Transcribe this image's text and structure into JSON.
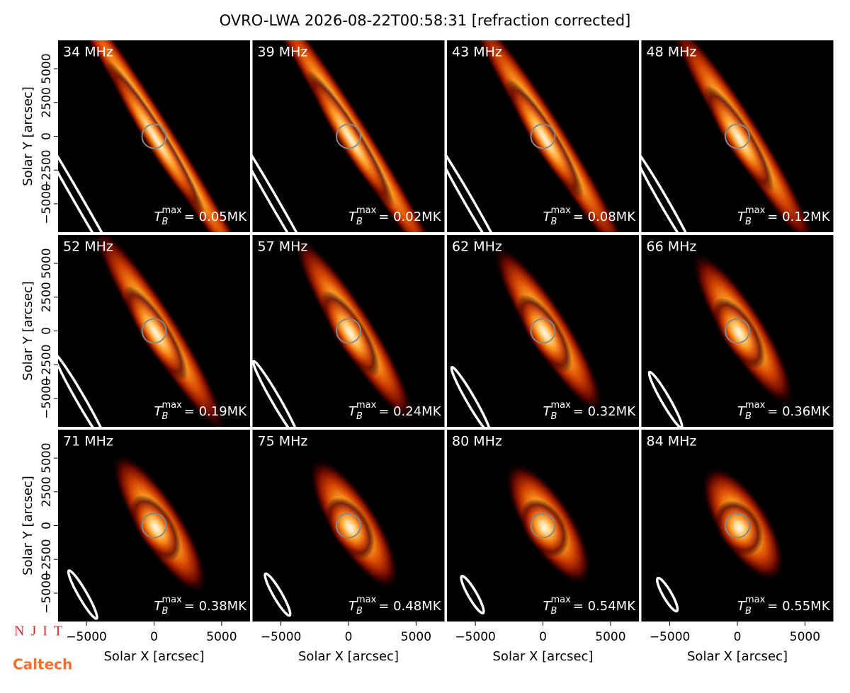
{
  "chart_data": {
    "type": "image-grid",
    "title": "OVRO-LWA 2026-08-22T00:58:31 [refraction corrected]",
    "xlabel": "Solar X [arcsec]",
    "ylabel": "Solar Y [arcsec]",
    "xlim": [
      -7100,
      7100
    ],
    "ylim": [
      -7100,
      7100
    ],
    "xticks": [
      {
        "value": -5000,
        "label": "−5000"
      },
      0,
      5000
    ],
    "yticks": [
      {
        "value": -5000,
        "label": "−5000"
      },
      {
        "value": -2500,
        "label": "−2500"
      },
      0,
      2500,
      5000
    ],
    "tb_symbol": {
      "main": "T",
      "sub": "B",
      "sup": "max"
    },
    "panels": [
      {
        "freq": "34 MHz",
        "tb_max": "= 0.05MK"
      },
      {
        "freq": "39 MHz",
        "tb_max": "= 0.02MK"
      },
      {
        "freq": "43 MHz",
        "tb_max": "= 0.08MK"
      },
      {
        "freq": "48 MHz",
        "tb_max": "= 0.12MK"
      },
      {
        "freq": "52 MHz",
        "tb_max": "= 0.19MK"
      },
      {
        "freq": "57 MHz",
        "tb_max": "= 0.24MK"
      },
      {
        "freq": "62 MHz",
        "tb_max": "= 0.32MK"
      },
      {
        "freq": "66 MHz",
        "tb_max": "= 0.36MK"
      },
      {
        "freq": "71 MHz",
        "tb_max": "= 0.38MK"
      },
      {
        "freq": "75 MHz",
        "tb_max": "= 0.48MK"
      },
      {
        "freq": "80 MHz",
        "tb_max": "= 0.54MK"
      },
      {
        "freq": "84 MHz",
        "tb_max": "= 0.55MK"
      }
    ],
    "logos": {
      "njit": "NJIT",
      "caltech": "Caltech"
    }
  }
}
